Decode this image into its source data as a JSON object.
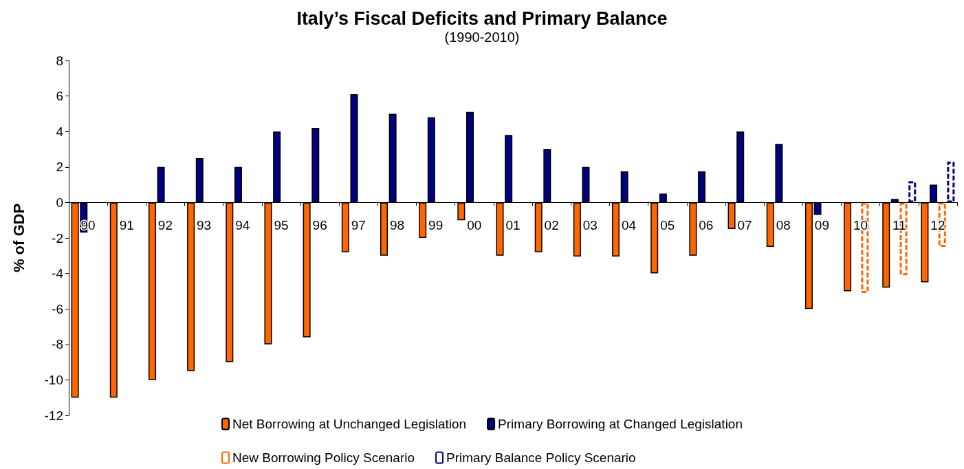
{
  "chart_data": {
    "type": "bar",
    "title": "Italy’s Fiscal Deficits and Primary Balance",
    "subtitle": "(1990-2010)",
    "ylabel": "% of GDP",
    "categories": [
      "90",
      "91",
      "92",
      "93",
      "94",
      "95",
      "96",
      "97",
      "98",
      "99",
      "00",
      "01",
      "02",
      "03",
      "04",
      "05",
      "06",
      "07",
      "08",
      "09",
      "10",
      "11",
      "12"
    ],
    "series": [
      {
        "name": "Net Borrowing at Unchanged Legislation",
        "color": "#ff6600",
        "values": [
          -11,
          -11,
          -10,
          -9.5,
          -9,
          -8,
          -7.6,
          -2.8,
          -3,
          -2,
          -1,
          -3,
          -2.8,
          -3.05,
          -3.05,
          -4,
          -3,
          -1.5,
          -2.5,
          -6,
          -5,
          -4.8,
          -4.5
        ]
      },
      {
        "name": "Primary Borrowing at Changed Legislation",
        "color": "#000080",
        "values": [
          -1.7,
          null,
          2,
          2.5,
          2,
          4,
          4.2,
          6.1,
          5,
          4.8,
          5.1,
          3.8,
          3,
          2,
          1.75,
          0.5,
          1.75,
          4,
          3.3,
          -0.7,
          null,
          0.2,
          1
        ]
      },
      {
        "name": "New Borrowing Policy Scenario",
        "color": "#ff6600",
        "line_style": "dotted",
        "values": [
          null,
          null,
          null,
          null,
          null,
          null,
          null,
          null,
          null,
          null,
          null,
          null,
          null,
          null,
          null,
          null,
          null,
          null,
          null,
          null,
          -5.1,
          -4.1,
          -2.5
        ]
      },
      {
        "name": "Primary Balance Policy Scenario",
        "color": "#000080",
        "line_style": "dotted",
        "values": [
          null,
          null,
          null,
          null,
          null,
          null,
          null,
          null,
          null,
          null,
          null,
          null,
          null,
          null,
          null,
          null,
          null,
          null,
          null,
          null,
          null,
          1.2,
          2.3
        ]
      }
    ],
    "ylim": [
      -12,
      8
    ],
    "yticks": [
      -12,
      -10,
      -8,
      -6,
      -4,
      -2,
      0,
      2,
      4,
      6,
      8
    ],
    "grid": false,
    "legend": "bottom"
  }
}
